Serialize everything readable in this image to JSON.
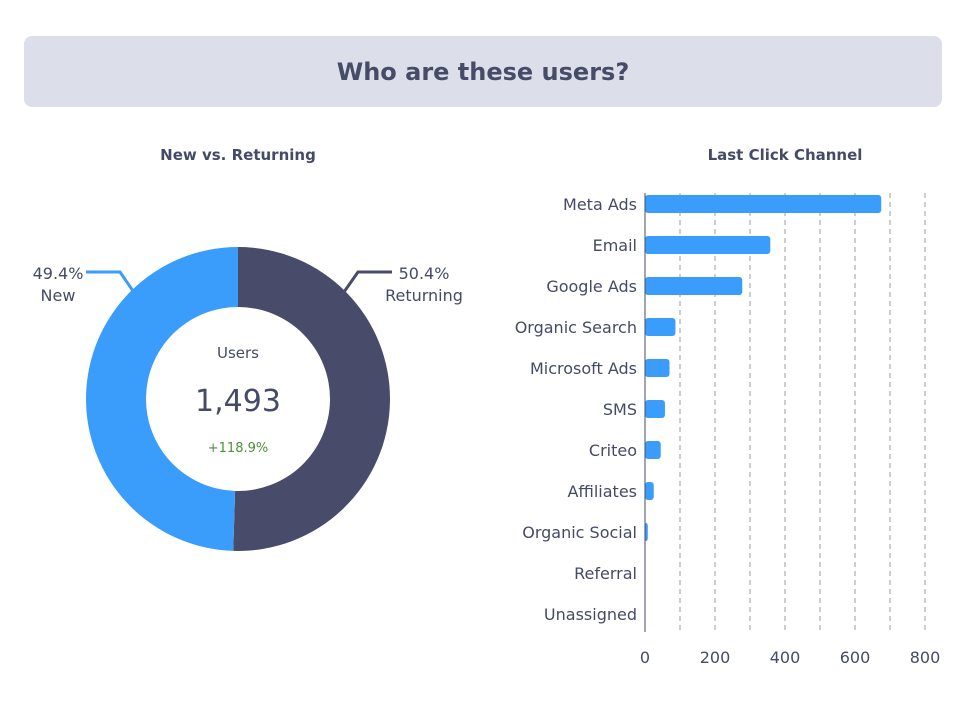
{
  "header": {
    "title": "Who are these users?"
  },
  "chart_data": [
    {
      "type": "pie",
      "title": "New vs. Returning",
      "center": {
        "label": "Users",
        "value": "1,493",
        "change": "+118.9%"
      },
      "slices": [
        {
          "name": "Returning",
          "value": 50.4,
          "label": "50.4%",
          "color": "#484c6a"
        },
        {
          "name": "New",
          "value": 49.4,
          "label": "49.4%",
          "color": "#3b9dfb"
        }
      ]
    },
    {
      "type": "bar",
      "orientation": "horizontal",
      "title": "Last Click Channel",
      "categories": [
        "Meta Ads",
        "Email",
        "Google Ads",
        "Organic Search",
        "Microsoft Ads",
        "SMS",
        "Criteo",
        "Affiliates",
        "Organic Social",
        "Referral",
        "Unassigned"
      ],
      "values": [
        675,
        358,
        278,
        87,
        70,
        57,
        45,
        25,
        8,
        0,
        0
      ],
      "xlim": [
        0,
        800
      ],
      "xticks": [
        0,
        200,
        400,
        600,
        800
      ],
      "grid": true,
      "color": "#3b9dfb"
    }
  ]
}
